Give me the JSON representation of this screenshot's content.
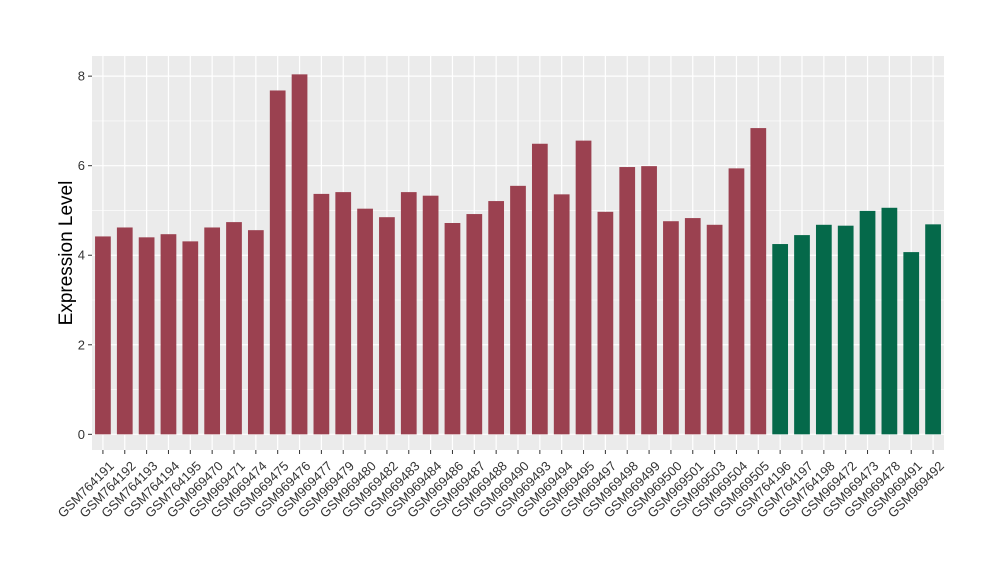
{
  "chart_data": {
    "type": "bar",
    "ylabel": "Expression Level",
    "xlabel": "",
    "ylim": [
      -0.35,
      8.45
    ],
    "yticks": [
      0,
      2,
      4,
      6,
      8
    ],
    "grid": true,
    "panel_background": "#EBEBEB",
    "grid_color": "#FFFFFF",
    "colors": {
      "group1": "#9B4150",
      "group2": "#05694A"
    },
    "categories": [
      "GSM764191",
      "GSM764192",
      "GSM764193",
      "GSM764194",
      "GSM764195",
      "GSM969470",
      "GSM969471",
      "GSM969474",
      "GSM969475",
      "GSM969476",
      "GSM969477",
      "GSM969479",
      "GSM969480",
      "GSM969482",
      "GSM969483",
      "GSM969484",
      "GSM969486",
      "GSM969487",
      "GSM969488",
      "GSM969490",
      "GSM969493",
      "GSM969494",
      "GSM969495",
      "GSM969497",
      "GSM969498",
      "GSM969499",
      "GSM969500",
      "GSM969501",
      "GSM969503",
      "GSM969504",
      "GSM969505",
      "GSM764196",
      "GSM764197",
      "GSM764198",
      "GSM969472",
      "GSM969473",
      "GSM969478",
      "GSM969491",
      "GSM969492"
    ],
    "values": [
      4.42,
      4.62,
      4.4,
      4.47,
      4.31,
      4.62,
      4.74,
      4.56,
      7.68,
      8.04,
      5.37,
      5.41,
      5.04,
      4.85,
      5.41,
      5.33,
      4.72,
      4.92,
      5.21,
      5.55,
      6.49,
      5.36,
      6.56,
      4.97,
      5.97,
      5.99,
      4.76,
      4.83,
      4.68,
      5.94,
      6.84,
      4.25,
      4.45,
      4.68,
      4.66,
      4.99,
      5.06,
      4.07,
      4.69
    ],
    "groups": [
      "group1",
      "group1",
      "group1",
      "group1",
      "group1",
      "group1",
      "group1",
      "group1",
      "group1",
      "group1",
      "group1",
      "group1",
      "group1",
      "group1",
      "group1",
      "group1",
      "group1",
      "group1",
      "group1",
      "group1",
      "group1",
      "group1",
      "group1",
      "group1",
      "group1",
      "group1",
      "group1",
      "group1",
      "group1",
      "group1",
      "group1",
      "group2",
      "group2",
      "group2",
      "group2",
      "group2",
      "group2",
      "group2",
      "group2"
    ]
  }
}
